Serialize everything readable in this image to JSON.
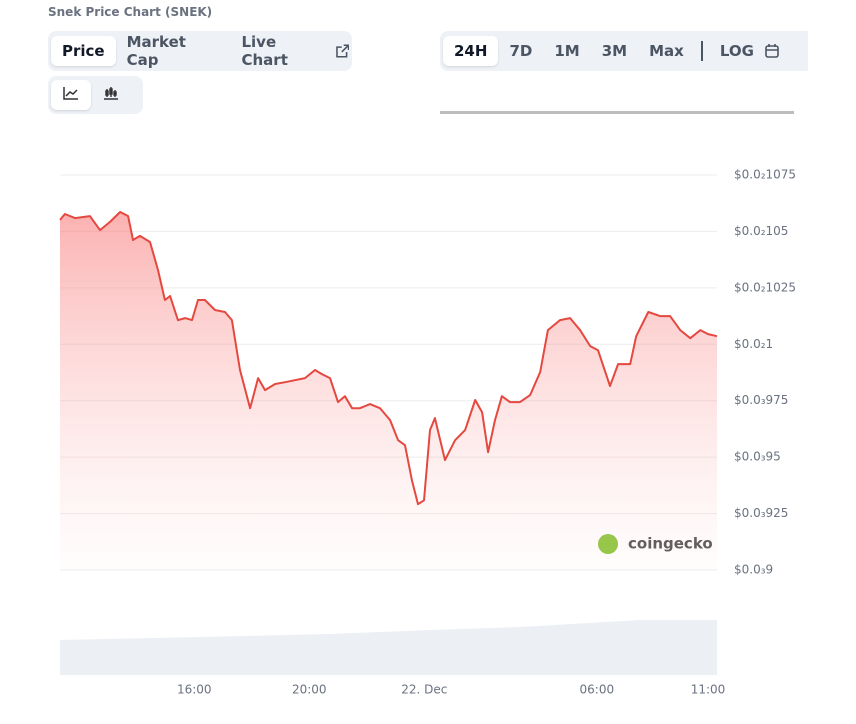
{
  "header": {
    "title": "Snek Price Chart (SNEK)"
  },
  "tabs": [
    "Price",
    "Market Cap",
    "Live Chart"
  ],
  "ranges": [
    "24H",
    "7D",
    "1M",
    "3M",
    "Max",
    "LOG"
  ],
  "watermark": "coingecko",
  "chart_data": {
    "type": "line",
    "x": [
      11.33,
      11.5,
      11.85,
      12.37,
      12.72,
      13.07,
      13.42,
      13.7,
      13.87,
      14.11,
      14.46,
      14.74,
      14.98,
      15.16,
      15.43,
      15.68,
      15.92,
      16.13,
      16.37,
      16.72,
      17.07,
      17.31,
      17.59,
      17.94,
      18.22,
      18.46,
      18.81,
      19.16,
      19.5,
      19.85,
      20.2,
      20.44,
      20.72,
      21.0,
      21.24,
      21.49,
      21.76,
      22.11,
      22.46,
      22.81,
      23.09,
      23.33,
      23.57,
      23.78,
      23.99,
      24.2,
      24.37,
      24.72,
      25.07,
      25.42,
      25.77,
      26.01,
      26.22,
      26.46,
      26.7,
      26.98,
      27.33,
      27.68,
      28.03,
      28.3,
      28.72,
      29.07,
      29.42,
      29.77,
      30.04,
      30.46,
      30.74,
      31.16,
      31.37,
      31.79,
      32.2,
      32.55,
      32.9,
      33.25,
      33.6,
      33.87,
      34.18
    ],
    "series": [
      {
        "name": "Price",
        "color": "#e5483f",
        "values": [
          0.0010551,
          0.0010577,
          0.0010559,
          0.0010568,
          0.0010506,
          0.0010542,
          0.0010586,
          0.0010568,
          0.0010462,
          0.001048,
          0.0010453,
          0.0010329,
          0.0010196,
          0.0010214,
          0.0010107,
          0.0010116,
          0.0010107,
          0.0010196,
          0.0010196,
          0.0010152,
          0.0010143,
          0.0010107,
          0.0009886,
          0.0009717,
          0.000985,
          0.0009797,
          0.0009824,
          0.0009832,
          0.0009841,
          0.000985,
          0.0009886,
          0.0009868,
          0.000985,
          0.0009744,
          0.000977,
          0.0009717,
          0.0009717,
          0.0009735,
          0.0009717,
          0.0009664,
          0.0009575,
          0.0009553,
          0.0009398,
          0.0009292,
          0.0009309,
          0.000962,
          0.0009673,
          0.0009487,
          0.0009575,
          0.000962,
          0.0009753,
          0.0009699,
          0.0009522,
          0.0009664,
          0.000977,
          0.0009744,
          0.0009744,
          0.0009775,
          0.0009877,
          0.0010063,
          0.0010107,
          0.0010116,
          0.0010063,
          0.0009992,
          0.0009974,
          0.0009815,
          0.0009912,
          0.0009912,
          0.0010036,
          0.0010143,
          0.0010125,
          0.0010125,
          0.0010063,
          0.0010027,
          0.0010063,
          0.0010045,
          0.0010036
        ]
      }
    ],
    "xlim": [
      11.33,
      34.18
    ],
    "xticks": [
      {
        "value": 16,
        "label": "16:00"
      },
      {
        "value": 20,
        "label": "20:00"
      },
      {
        "value": 24,
        "label": "22. Dec"
      },
      {
        "value": 30,
        "label": "06:00"
      },
      {
        "value": 35,
        "label": "11:00"
      }
    ],
    "ylim": [
      0.0009,
      0.001075
    ],
    "yticks": [
      {
        "value": 0.0009,
        "label": "$0.0₃9"
      },
      {
        "value": 0.000925,
        "label": "$0.0₃925"
      },
      {
        "value": 0.00095,
        "label": "$0.0₃95"
      },
      {
        "value": 0.000975,
        "label": "$0.0₃975"
      },
      {
        "value": 0.001,
        "label": "$0.0₂1"
      },
      {
        "value": 0.001025,
        "label": "$0.0₂1025"
      },
      {
        "value": 0.00105,
        "label": "$0.0₂105"
      },
      {
        "value": 0.001075,
        "label": "$0.0₂1075"
      }
    ],
    "grid": true
  }
}
